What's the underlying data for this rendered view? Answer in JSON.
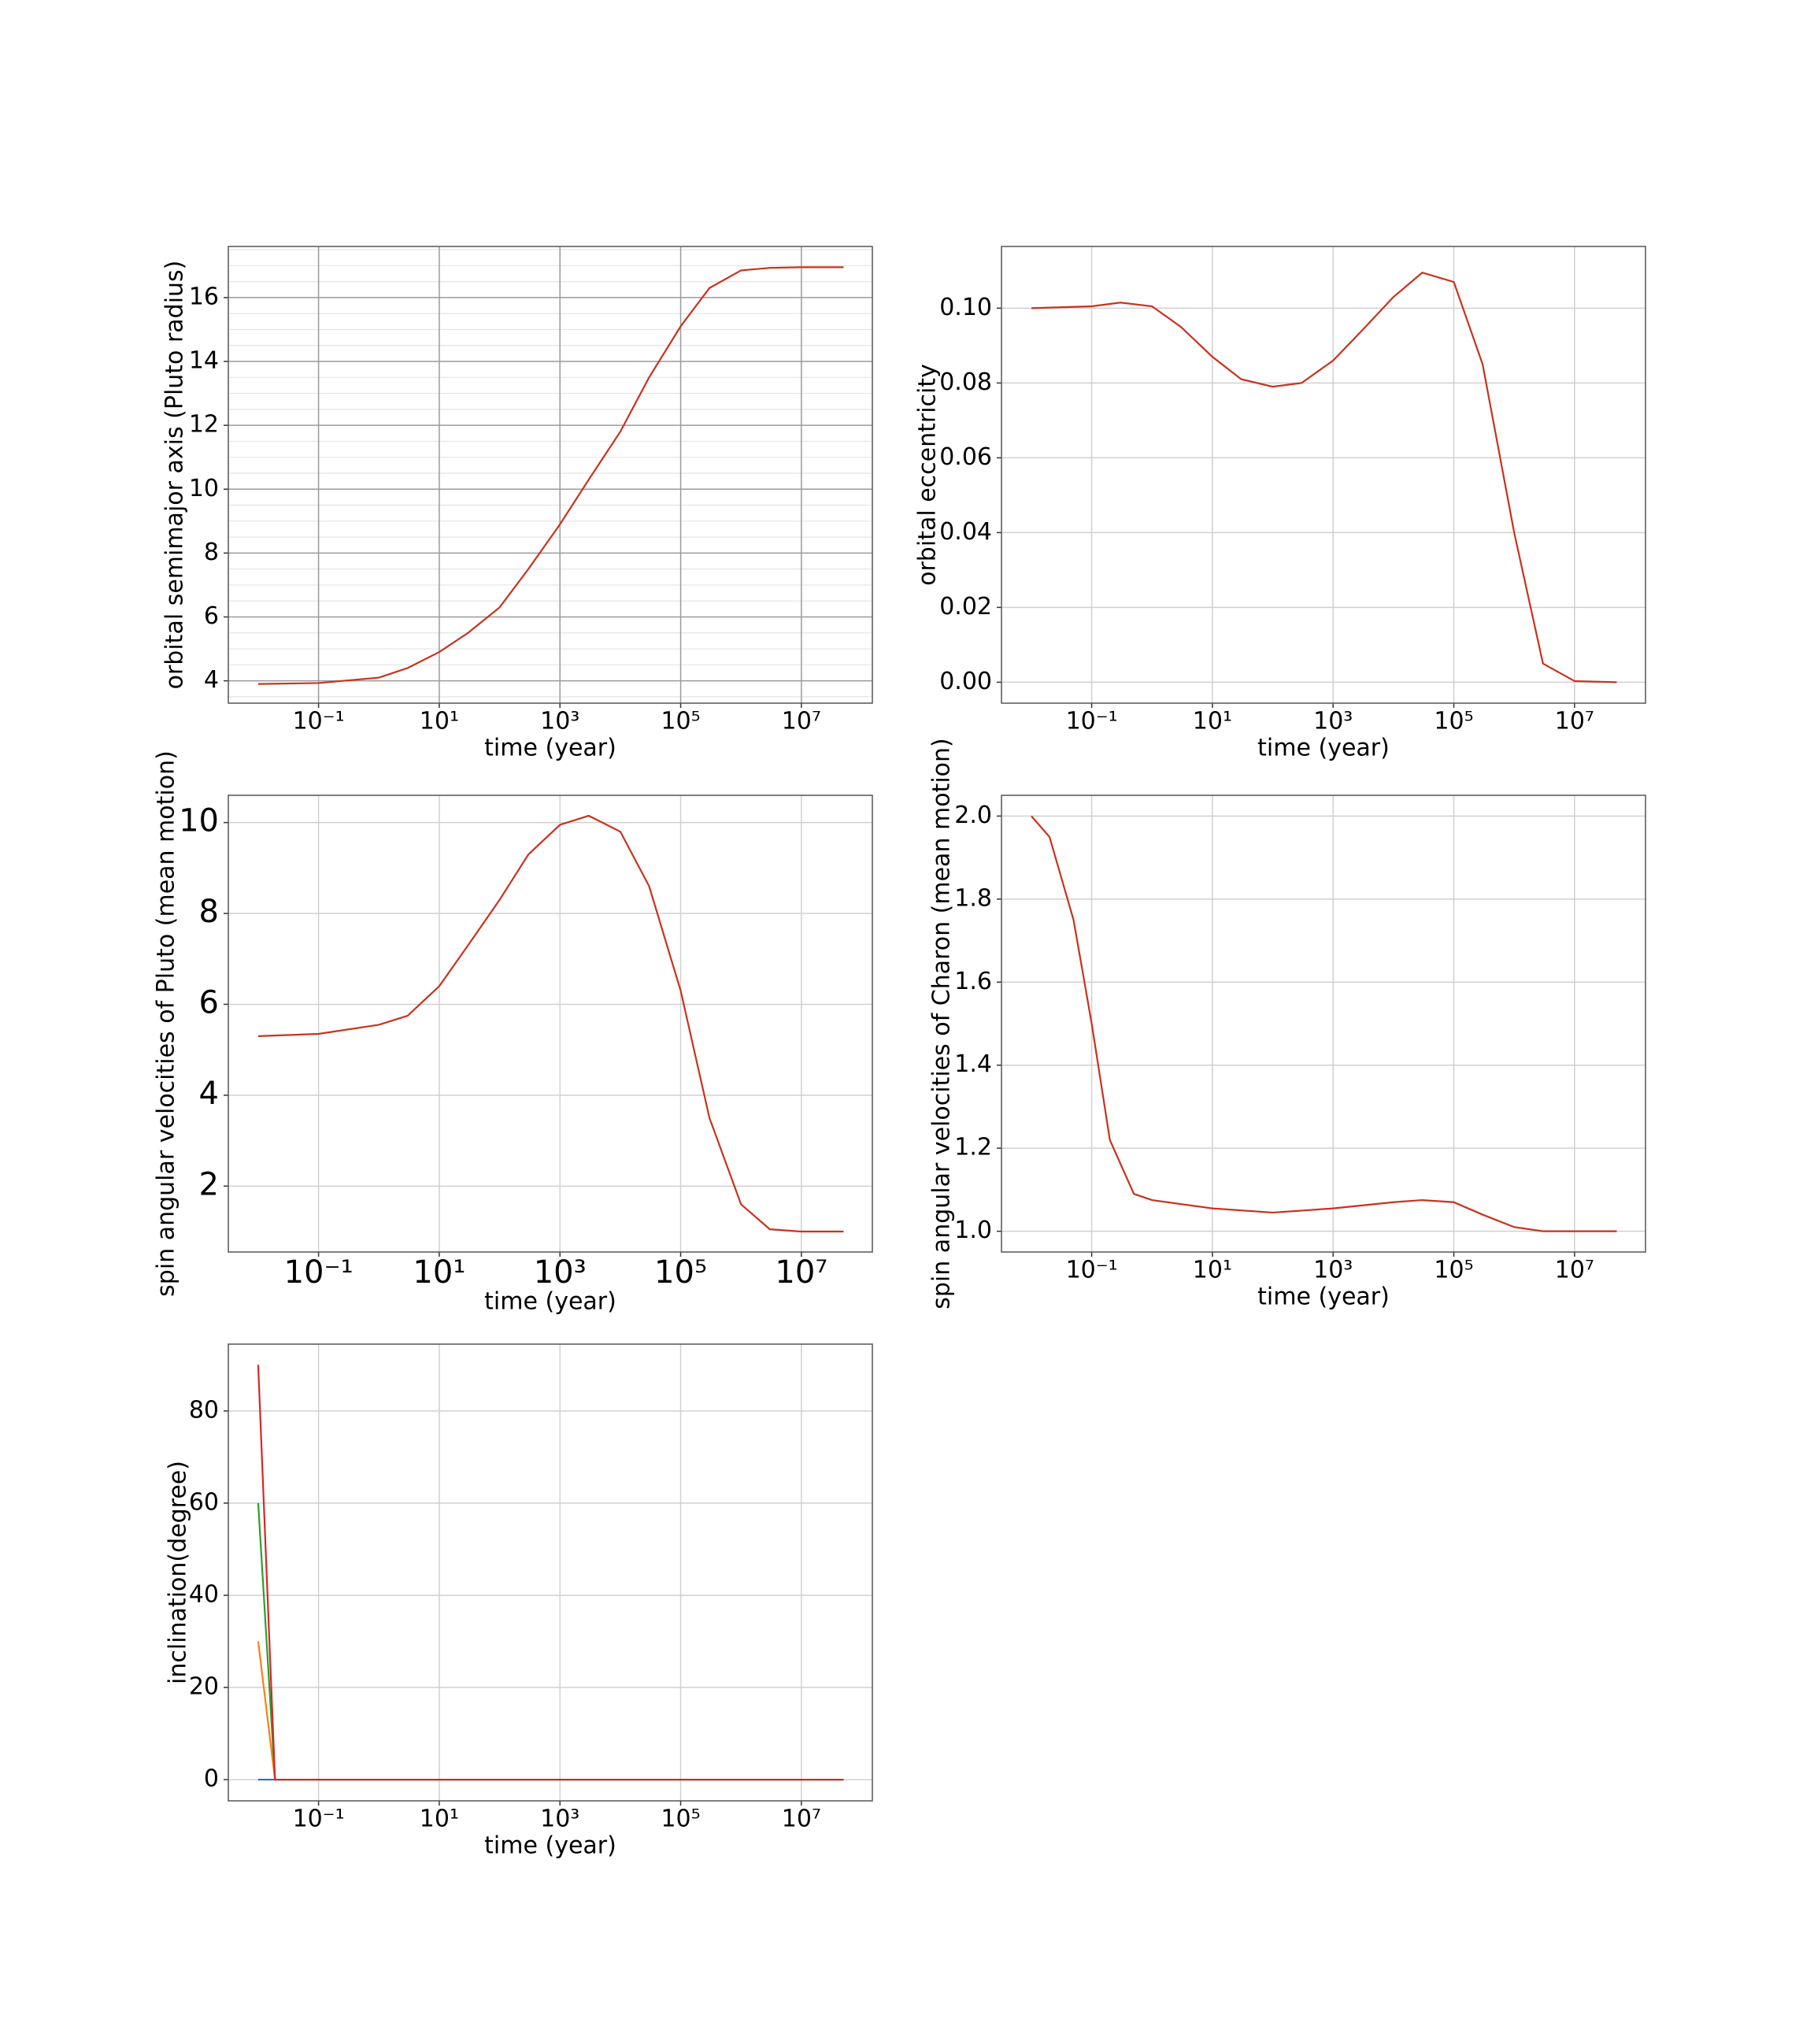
{
  "chart_data": [
    {
      "type": "line",
      "xlabel": "time  (year)",
      "ylabel": "orbital semimajor axis (Pluto radius)",
      "log_x": true,
      "grid": true,
      "grid_style": "dark",
      "xlim": [
        0.0032,
        150000000
      ],
      "ylim": [
        3.3,
        17.6
      ],
      "xticks": [
        {
          "value": 0.1,
          "label": "10⁻¹"
        },
        {
          "value": 10,
          "label": "10¹"
        },
        {
          "value": 1000,
          "label": "10³"
        },
        {
          "value": 100000,
          "label": "10⁵"
        },
        {
          "value": 10000000,
          "label": "10⁷"
        }
      ],
      "yticks": [
        4,
        6,
        8,
        10,
        12,
        14,
        16
      ],
      "yminorticks": [
        3.5,
        4.5,
        5,
        5.5,
        6.5,
        7,
        7.5,
        8.5,
        9,
        9.5,
        10.5,
        11,
        11.5,
        12.5,
        13,
        13.5,
        14.5,
        15,
        15.5,
        16.5,
        17,
        17.5
      ],
      "x": [
        0.01,
        0.1,
        1,
        3,
        10,
        30,
        100,
        300,
        1000,
        3000,
        10000,
        30000,
        100000,
        300000,
        1000000,
        3000000,
        10000000,
        50000000
      ],
      "series": [
        {
          "color": "#c8321e",
          "values": [
            3.9,
            3.93,
            4.1,
            4.4,
            4.9,
            5.5,
            6.3,
            7.5,
            8.9,
            10.3,
            11.8,
            13.5,
            15.1,
            16.3,
            16.85,
            16.93,
            16.95,
            16.95
          ]
        }
      ]
    },
    {
      "type": "line",
      "xlabel": "time  (year)",
      "ylabel": "orbital eccentricity",
      "log_x": true,
      "grid": true,
      "xlim": [
        0.0032,
        150000000
      ],
      "ylim": [
        -0.0056,
        0.1165
      ],
      "xticks": [
        {
          "value": 0.1,
          "label": "10⁻¹"
        },
        {
          "value": 10,
          "label": "10¹"
        },
        {
          "value": 1000,
          "label": "10³"
        },
        {
          "value": 100000,
          "label": "10⁵"
        },
        {
          "value": 10000000,
          "label": "10⁷"
        }
      ],
      "yticks": [
        {
          "value": 0,
          "label": "0.00"
        },
        {
          "value": 0.02,
          "label": "0.02"
        },
        {
          "value": 0.04,
          "label": "0.04"
        },
        {
          "value": 0.06,
          "label": "0.06"
        },
        {
          "value": 0.08,
          "label": "0.08"
        },
        {
          "value": 0.1,
          "label": "0.10"
        }
      ],
      "x": [
        0.01,
        0.1,
        0.3,
        1,
        3,
        10,
        30,
        100,
        300,
        1000,
        3000,
        10000,
        30000,
        100000,
        300000,
        1000000,
        3000000,
        10000000,
        50000000
      ],
      "series": [
        {
          "color": "#c8321e",
          "values": [
            0.1,
            0.1005,
            0.1015,
            0.1005,
            0.095,
            0.087,
            0.081,
            0.079,
            0.08,
            0.086,
            0.094,
            0.103,
            0.1095,
            0.107,
            0.085,
            0.04,
            0.005,
            0.0003,
            0
          ]
        }
      ]
    },
    {
      "type": "line",
      "xlabel": "time (year)",
      "ylabel": "spin angular velocities of Pluto (mean motion)",
      "log_x": true,
      "grid": true,
      "large_ticks": true,
      "xlim": [
        0.0032,
        150000000
      ],
      "ylim": [
        0.55,
        10.6
      ],
      "xticks": [
        {
          "value": 0.1,
          "label": "10⁻¹"
        },
        {
          "value": 10,
          "label": "10¹"
        },
        {
          "value": 1000,
          "label": "10³"
        },
        {
          "value": 100000,
          "label": "10⁵"
        },
        {
          "value": 10000000,
          "label": "10⁷"
        }
      ],
      "yticks": [
        2,
        4,
        6,
        8,
        10
      ],
      "x": [
        0.01,
        0.1,
        1,
        3,
        10,
        30,
        100,
        300,
        1000,
        3000,
        10000,
        30000,
        100000,
        300000,
        1000000,
        3000000,
        10000000,
        50000000
      ],
      "series": [
        {
          "color": "#c8321e",
          "values": [
            5.3,
            5.35,
            5.55,
            5.75,
            6.4,
            7.3,
            8.3,
            9.3,
            9.95,
            10.15,
            9.8,
            8.6,
            6.3,
            3.5,
            1.6,
            1.05,
            1.0,
            1.0
          ]
        }
      ]
    },
    {
      "type": "line",
      "xlabel": "time  (year)",
      "ylabel": "spin angular velocities of Charon (mean motion)",
      "log_x": true,
      "grid": true,
      "xlim": [
        0.0032,
        150000000
      ],
      "ylim": [
        0.95,
        2.05
      ],
      "xticks": [
        {
          "value": 0.1,
          "label": "10⁻¹"
        },
        {
          "value": 10,
          "label": "10¹"
        },
        {
          "value": 1000,
          "label": "10³"
        },
        {
          "value": 100000,
          "label": "10⁵"
        },
        {
          "value": 10000000,
          "label": "10⁷"
        }
      ],
      "yticks": [
        {
          "value": 1,
          "label": "1.0"
        },
        {
          "value": 1.2,
          "label": "1.2"
        },
        {
          "value": 1.4,
          "label": "1.4"
        },
        {
          "value": 1.6,
          "label": "1.6"
        },
        {
          "value": 1.8,
          "label": "1.8"
        },
        {
          "value": 2,
          "label": "2.0"
        }
      ],
      "x": [
        0.01,
        0.02,
        0.05,
        0.1,
        0.2,
        0.5,
        1,
        10,
        100,
        1000,
        10000,
        30000,
        100000,
        300000,
        1000000,
        3000000,
        50000000
      ],
      "series": [
        {
          "color": "#c8321e",
          "values": [
            2.0,
            1.95,
            1.75,
            1.5,
            1.22,
            1.09,
            1.075,
            1.055,
            1.045,
            1.055,
            1.07,
            1.075,
            1.07,
            1.04,
            1.01,
            1.0,
            1.0
          ]
        }
      ]
    },
    {
      "type": "line",
      "xlabel": "time  (year)",
      "ylabel": "inclination(degree)",
      "log_x": true,
      "grid": true,
      "xlim": [
        0.0032,
        150000000
      ],
      "ylim": [
        -4.6,
        94.5
      ],
      "xticks": [
        {
          "value": 0.1,
          "label": "10⁻¹"
        },
        {
          "value": 10,
          "label": "10¹"
        },
        {
          "value": 1000,
          "label": "10³"
        },
        {
          "value": 100000,
          "label": "10⁵"
        },
        {
          "value": 10000000,
          "label": "10⁷"
        }
      ],
      "yticks": [
        0,
        20,
        40,
        60,
        80
      ],
      "x": [
        0.01,
        0.019,
        50000000
      ],
      "series": [
        {
          "color": "#1f77b4",
          "values": [
            0,
            0,
            0
          ]
        },
        {
          "color": "#ff7f0e",
          "values": [
            30,
            0,
            0
          ]
        },
        {
          "color": "#2ca02c",
          "values": [
            60,
            0,
            0
          ]
        },
        {
          "color": "#d62728",
          "values": [
            90,
            0,
            0
          ]
        }
      ]
    }
  ]
}
